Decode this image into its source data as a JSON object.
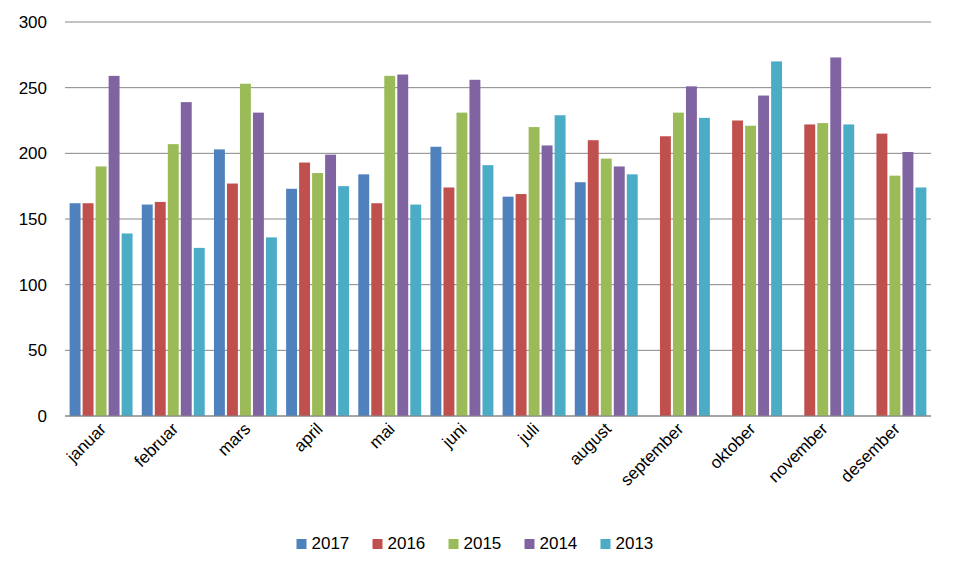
{
  "chart_data": {
    "type": "bar",
    "categories": [
      "januar",
      "februar",
      "mars",
      "april",
      "mai",
      "juni",
      "juli",
      "august",
      "september",
      "oktober",
      "november",
      "desember"
    ],
    "series": [
      {
        "name": "2017",
        "color": "#4F81BD",
        "values": [
          162,
          161,
          203,
          173,
          184,
          205,
          167,
          178,
          null,
          null,
          null,
          null
        ]
      },
      {
        "name": "2016",
        "color": "#C0504D",
        "values": [
          162,
          163,
          177,
          193,
          162,
          174,
          169,
          210,
          213,
          225,
          222,
          215
        ]
      },
      {
        "name": "2015",
        "color": "#9BBB59",
        "values": [
          190,
          207,
          253,
          185,
          259,
          231,
          220,
          196,
          231,
          221,
          223,
          183
        ]
      },
      {
        "name": "2014",
        "color": "#8064A2",
        "values": [
          259,
          239,
          231,
          199,
          260,
          256,
          206,
          190,
          251,
          244,
          273,
          201
        ]
      },
      {
        "name": "2013",
        "color": "#4BACC6",
        "values": [
          139,
          128,
          136,
          175,
          161,
          191,
          229,
          184,
          227,
          270,
          222,
          174
        ]
      }
    ],
    "ylim": [
      0,
      300
    ],
    "yticks": [
      0,
      50,
      100,
      150,
      200,
      250,
      300
    ],
    "grid": true,
    "legend": "bottom"
  }
}
